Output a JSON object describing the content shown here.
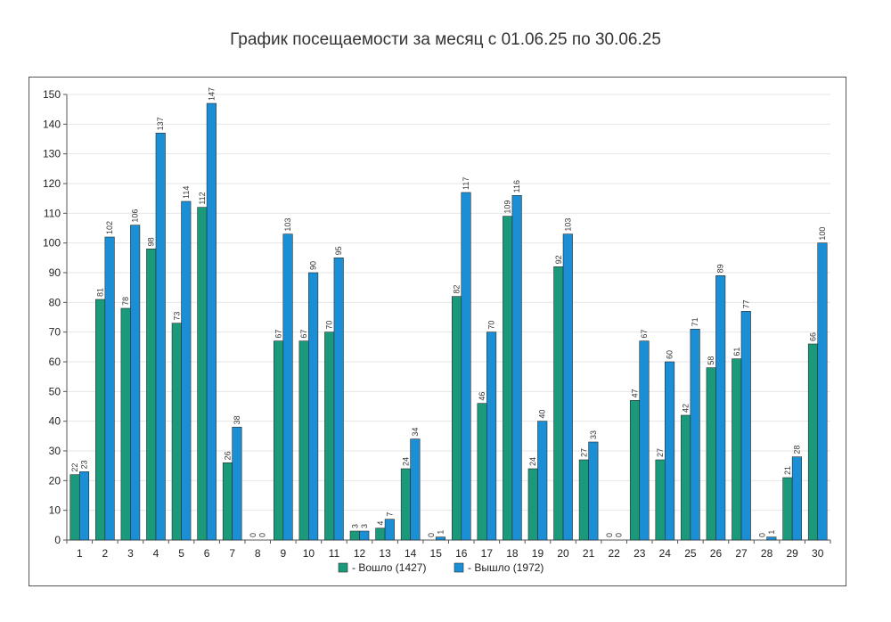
{
  "chart_data": {
    "type": "bar",
    "title": "График посещаемости за месяц с 01.06.25 по 30.06.25",
    "categories": [
      "1",
      "2",
      "3",
      "4",
      "5",
      "6",
      "7",
      "8",
      "9",
      "10",
      "11",
      "12",
      "13",
      "14",
      "15",
      "16",
      "17",
      "18",
      "19",
      "20",
      "21",
      "22",
      "23",
      "24",
      "25",
      "26",
      "27",
      "28",
      "29",
      "30"
    ],
    "series": [
      {
        "name": "- Вошло (1427)",
        "color": "#1a9a7a",
        "values": [
          22,
          81,
          78,
          98,
          73,
          112,
          26,
          0,
          67,
          67,
          70,
          3,
          4,
          24,
          0,
          82,
          46,
          109,
          24,
          92,
          27,
          0,
          47,
          27,
          42,
          58,
          61,
          0,
          21,
          66
        ]
      },
      {
        "name": "- Вышло (1972)",
        "color": "#1a8fd6",
        "values": [
          23,
          102,
          106,
          137,
          114,
          147,
          38,
          0,
          103,
          90,
          95,
          3,
          7,
          34,
          1,
          117,
          70,
          116,
          40,
          103,
          33,
          0,
          67,
          60,
          71,
          89,
          77,
          1,
          28,
          100
        ]
      }
    ],
    "yticks": [
      0,
      10,
      20,
      30,
      40,
      50,
      60,
      70,
      80,
      90,
      100,
      110,
      120,
      130,
      140,
      150
    ],
    "ylim": [
      0,
      150
    ],
    "grid": true,
    "legend_position": "bottom-center"
  }
}
